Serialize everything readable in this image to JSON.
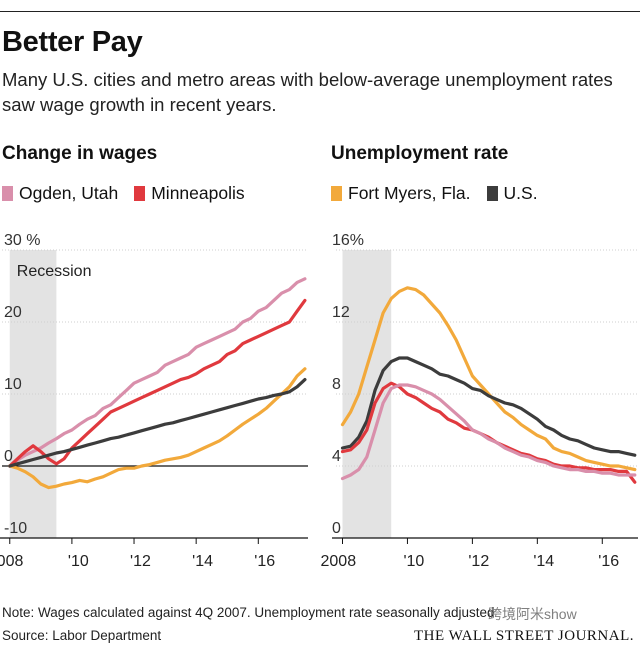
{
  "header": {
    "title": "Better Pay",
    "subtitle": "Many U.S. cities and metro areas with below-average unemployment rates saw wage growth in recent years."
  },
  "footer": {
    "note": "Note: Wages calculated against 4Q 2007. Unemployment rate seasonally adjusted",
    "source": "Source: Labor Department",
    "publisher": "THE WALL STREET JOURNAL.",
    "watermark": "跨境阿米show"
  },
  "chart_data": [
    {
      "type": "line",
      "title": "Change in wages",
      "ylim": [
        -10,
        30
      ],
      "xlim": [
        2007.75,
        2017.6
      ],
      "yticks": [
        -10,
        0,
        10,
        20,
        30
      ],
      "ytick_labels": [
        "-10",
        "0",
        "10",
        "20",
        "30 %"
      ],
      "xticks": [
        2008,
        2010,
        2012,
        2014,
        2016
      ],
      "xtick_labels": [
        "2008",
        "'10",
        "'12",
        "'14",
        "'16"
      ],
      "zero_line": true,
      "shaded_region": {
        "label": "Recession",
        "from": 2008.0,
        "to": 2009.5,
        "color": "#e3e3e3"
      },
      "legend": {
        "placement": "top"
      },
      "series": [
        {
          "name": "Ogden, Utah",
          "color": "#d98fab",
          "x": [
            2008.0,
            2008.25,
            2008.5,
            2008.75,
            2009.0,
            2009.25,
            2009.5,
            2009.75,
            2010.0,
            2010.25,
            2010.5,
            2010.75,
            2011.0,
            2011.25,
            2011.5,
            2011.75,
            2012.0,
            2012.25,
            2012.5,
            2012.75,
            2013.0,
            2013.25,
            2013.5,
            2013.75,
            2014.0,
            2014.25,
            2014.5,
            2014.75,
            2015.0,
            2015.25,
            2015.5,
            2015.75,
            2016.0,
            2016.25,
            2016.5,
            2016.75,
            2017.0,
            2017.25,
            2017.5
          ],
          "y": [
            0.0,
            0.8,
            1.5,
            2.0,
            2.5,
            3.2,
            3.8,
            4.5,
            5.0,
            5.8,
            6.5,
            7.0,
            8.0,
            8.5,
            9.5,
            10.5,
            11.5,
            12.0,
            12.5,
            13.0,
            14.0,
            14.5,
            15.0,
            15.5,
            16.5,
            17.0,
            17.5,
            18.0,
            18.5,
            19.0,
            20.0,
            20.5,
            21.5,
            22.0,
            23.0,
            24.0,
            24.5,
            25.5,
            26.0
          ]
        },
        {
          "name": "Minneapolis",
          "color": "#e0393e",
          "x": [
            2008.0,
            2008.25,
            2008.5,
            2008.75,
            2009.0,
            2009.25,
            2009.5,
            2009.75,
            2010.0,
            2010.25,
            2010.5,
            2010.75,
            2011.0,
            2011.25,
            2011.5,
            2011.75,
            2012.0,
            2012.25,
            2012.5,
            2012.75,
            2013.0,
            2013.25,
            2013.5,
            2013.75,
            2014.0,
            2014.25,
            2014.5,
            2014.75,
            2015.0,
            2015.25,
            2015.5,
            2015.75,
            2016.0,
            2016.25,
            2016.5,
            2016.75,
            2017.0,
            2017.25,
            2017.5
          ],
          "y": [
            0.0,
            1.0,
            2.0,
            2.8,
            2.0,
            1.0,
            0.3,
            1.0,
            2.5,
            3.5,
            4.5,
            5.5,
            6.5,
            7.5,
            8.0,
            8.5,
            9.0,
            9.5,
            10.0,
            10.5,
            11.0,
            11.5,
            12.0,
            12.3,
            12.8,
            13.5,
            14.0,
            14.5,
            15.5,
            16.0,
            17.0,
            17.5,
            18.0,
            18.5,
            19.0,
            19.5,
            20.0,
            21.5,
            23.0
          ]
        },
        {
          "name": "Fort Myers, Fla.",
          "color": "#f2a93b",
          "x": [
            2008.0,
            2008.25,
            2008.5,
            2008.75,
            2009.0,
            2009.25,
            2009.5,
            2009.75,
            2010.0,
            2010.25,
            2010.5,
            2010.75,
            2011.0,
            2011.25,
            2011.5,
            2011.75,
            2012.0,
            2012.25,
            2012.5,
            2012.75,
            2013.0,
            2013.25,
            2013.5,
            2013.75,
            2014.0,
            2014.25,
            2014.5,
            2014.75,
            2015.0,
            2015.25,
            2015.5,
            2015.75,
            2016.0,
            2016.25,
            2016.5,
            2016.75,
            2017.0,
            2017.25,
            2017.5
          ],
          "y": [
            0.0,
            -0.3,
            -0.8,
            -1.5,
            -2.5,
            -3.0,
            -2.8,
            -2.5,
            -2.3,
            -2.0,
            -2.2,
            -1.8,
            -1.5,
            -1.0,
            -0.5,
            -0.3,
            -0.3,
            0.0,
            0.2,
            0.5,
            0.8,
            1.0,
            1.2,
            1.5,
            2.0,
            2.5,
            3.0,
            3.5,
            4.2,
            5.0,
            5.8,
            6.5,
            7.2,
            8.0,
            9.0,
            10.0,
            11.0,
            12.5,
            13.5
          ]
        },
        {
          "name": "U.S.",
          "color": "#3c3c3c",
          "x": [
            2008.0,
            2008.25,
            2008.5,
            2008.75,
            2009.0,
            2009.25,
            2009.5,
            2009.75,
            2010.0,
            2010.25,
            2010.5,
            2010.75,
            2011.0,
            2011.25,
            2011.5,
            2011.75,
            2012.0,
            2012.25,
            2012.5,
            2012.75,
            2013.0,
            2013.25,
            2013.5,
            2013.75,
            2014.0,
            2014.25,
            2014.5,
            2014.75,
            2015.0,
            2015.25,
            2015.5,
            2015.75,
            2016.0,
            2016.25,
            2016.5,
            2016.75,
            2017.0,
            2017.25,
            2017.5
          ],
          "y": [
            0.0,
            0.3,
            0.6,
            0.9,
            1.2,
            1.5,
            1.8,
            2.0,
            2.3,
            2.6,
            2.9,
            3.2,
            3.5,
            3.8,
            4.0,
            4.3,
            4.6,
            4.9,
            5.2,
            5.5,
            5.8,
            6.0,
            6.3,
            6.6,
            6.9,
            7.2,
            7.5,
            7.8,
            8.1,
            8.4,
            8.7,
            9.0,
            9.3,
            9.5,
            9.8,
            10.0,
            10.3,
            11.0,
            12.0
          ]
        }
      ]
    },
    {
      "type": "line",
      "title": "Unemployment rate",
      "ylim": [
        0,
        16
      ],
      "xlim": [
        2007.8,
        2017.1
      ],
      "yticks": [
        0,
        4,
        8,
        12,
        16
      ],
      "ytick_labels": [
        "0",
        "4",
        "8",
        "12",
        "16%"
      ],
      "xticks": [
        2008,
        2010,
        2012,
        2014,
        2016
      ],
      "xtick_labels": [
        "2008",
        "'10",
        "'12",
        "'14",
        "'16"
      ],
      "shaded_region": {
        "from": 2008.0,
        "to": 2009.5,
        "color": "#e3e3e3"
      },
      "legend": {
        "placement": "top"
      },
      "series": [
        {
          "name": "Fort Myers, Fla.",
          "color": "#f2a93b",
          "x": [
            2008.0,
            2008.25,
            2008.5,
            2008.75,
            2009.0,
            2009.25,
            2009.5,
            2009.75,
            2010.0,
            2010.25,
            2010.5,
            2010.75,
            2011.0,
            2011.25,
            2011.5,
            2011.75,
            2012.0,
            2012.25,
            2012.5,
            2012.75,
            2013.0,
            2013.25,
            2013.5,
            2013.75,
            2014.0,
            2014.25,
            2014.5,
            2014.75,
            2015.0,
            2015.25,
            2015.5,
            2015.75,
            2016.0,
            2016.25,
            2016.5,
            2016.75,
            2017.0
          ],
          "y": [
            6.3,
            7.0,
            8.0,
            9.5,
            11.0,
            12.5,
            13.3,
            13.7,
            13.9,
            13.8,
            13.5,
            13.0,
            12.5,
            11.8,
            11.0,
            10.0,
            9.0,
            8.5,
            8.0,
            7.5,
            7.0,
            6.7,
            6.3,
            6.0,
            5.7,
            5.5,
            5.0,
            4.8,
            4.7,
            4.5,
            4.3,
            4.2,
            4.1,
            4.0,
            4.0,
            3.9,
            3.8
          ]
        },
        {
          "name": "U.S.",
          "color": "#3c3c3c",
          "x": [
            2008.0,
            2008.25,
            2008.5,
            2008.75,
            2009.0,
            2009.25,
            2009.5,
            2009.75,
            2010.0,
            2010.25,
            2010.5,
            2010.75,
            2011.0,
            2011.25,
            2011.5,
            2011.75,
            2012.0,
            2012.25,
            2012.5,
            2012.75,
            2013.0,
            2013.25,
            2013.5,
            2013.75,
            2014.0,
            2014.25,
            2014.5,
            2014.75,
            2015.0,
            2015.25,
            2015.5,
            2015.75,
            2016.0,
            2016.25,
            2016.5,
            2016.75,
            2017.0
          ],
          "y": [
            5.0,
            5.1,
            5.6,
            6.5,
            8.2,
            9.3,
            9.8,
            10.0,
            10.0,
            9.8,
            9.6,
            9.4,
            9.1,
            9.0,
            8.8,
            8.6,
            8.3,
            8.2,
            7.9,
            7.7,
            7.5,
            7.4,
            7.2,
            6.9,
            6.6,
            6.2,
            6.0,
            5.7,
            5.5,
            5.4,
            5.2,
            5.0,
            4.9,
            4.8,
            4.8,
            4.7,
            4.6
          ]
        },
        {
          "name": "Minneapolis",
          "color": "#e0393e",
          "x": [
            2008.0,
            2008.25,
            2008.5,
            2008.75,
            2009.0,
            2009.25,
            2009.5,
            2009.75,
            2010.0,
            2010.25,
            2010.5,
            2010.75,
            2011.0,
            2011.25,
            2011.5,
            2011.75,
            2012.0,
            2012.25,
            2012.5,
            2012.75,
            2013.0,
            2013.25,
            2013.5,
            2013.75,
            2014.0,
            2014.25,
            2014.5,
            2014.75,
            2015.0,
            2015.25,
            2015.5,
            2015.75,
            2016.0,
            2016.25,
            2016.5,
            2016.75,
            2017.0
          ],
          "y": [
            4.8,
            4.9,
            5.3,
            6.0,
            7.5,
            8.3,
            8.6,
            8.4,
            8.0,
            7.8,
            7.5,
            7.2,
            7.0,
            6.6,
            6.4,
            6.1,
            6.0,
            5.8,
            5.6,
            5.3,
            5.1,
            4.9,
            4.7,
            4.6,
            4.4,
            4.3,
            4.1,
            4.0,
            4.0,
            3.9,
            3.9,
            3.8,
            3.8,
            3.8,
            3.7,
            3.7,
            3.1
          ]
        },
        {
          "name": "Ogden, Utah",
          "color": "#d98fab",
          "x": [
            2008.0,
            2008.25,
            2008.5,
            2008.75,
            2009.0,
            2009.25,
            2009.5,
            2009.75,
            2010.0,
            2010.25,
            2010.5,
            2010.75,
            2011.0,
            2011.25,
            2011.5,
            2011.75,
            2012.0,
            2012.25,
            2012.5,
            2012.75,
            2013.0,
            2013.25,
            2013.5,
            2013.75,
            2014.0,
            2014.25,
            2014.5,
            2014.75,
            2015.0,
            2015.25,
            2015.5,
            2015.75,
            2016.0,
            2016.25,
            2016.5,
            2016.75,
            2017.0
          ],
          "y": [
            3.3,
            3.5,
            3.8,
            4.5,
            6.0,
            7.5,
            8.3,
            8.5,
            8.5,
            8.4,
            8.2,
            8.0,
            7.7,
            7.3,
            6.9,
            6.5,
            6.0,
            5.8,
            5.5,
            5.3,
            5.0,
            4.8,
            4.6,
            4.5,
            4.3,
            4.2,
            4.0,
            3.9,
            3.8,
            3.8,
            3.7,
            3.7,
            3.6,
            3.6,
            3.5,
            3.5,
            3.5
          ]
        }
      ]
    }
  ]
}
